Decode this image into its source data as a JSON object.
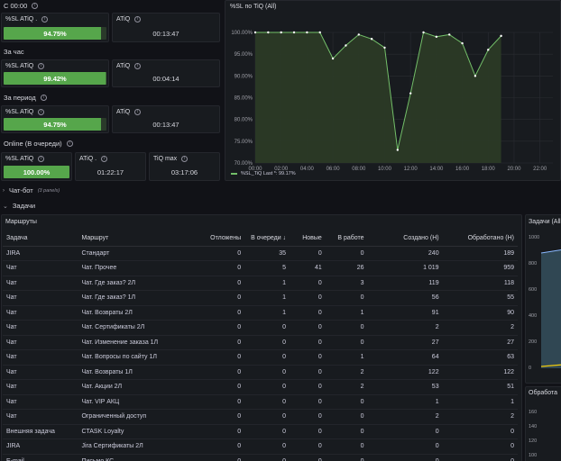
{
  "row1": {
    "title": "С 00:00"
  },
  "row2": {
    "title": "За час"
  },
  "row3": {
    "title": "За период"
  },
  "row4": {
    "title": "Online (В очереди)"
  },
  "stats": {
    "sl1": {
      "title": "%SL ATiQ .",
      "value": "94.75%",
      "fill": 0.9475
    },
    "atiq1": {
      "title": "ATiQ",
      "value": "00:13:47"
    },
    "sl2": {
      "title": "%SL ATiQ",
      "value": "99.42%",
      "fill": 0.9942
    },
    "atiq2": {
      "title": "ATiQ",
      "value": "00:04:14"
    },
    "sl3": {
      "title": "%SL ATiQ",
      "value": "94.75%",
      "fill": 0.9475
    },
    "atiq3": {
      "title": "ATiQ",
      "value": "00:13:47"
    },
    "sl4": {
      "title": "%SL ATiQ",
      "value": "100.00%",
      "fill": 1.0
    },
    "atiq4": {
      "title": "ATiQ .",
      "value": "01:22:17"
    },
    "tiqmax": {
      "title": "TiQ max",
      "value": "03:17:06"
    }
  },
  "collapsed_row": {
    "title": "Чат-бот",
    "count": "(3 panels)"
  },
  "tasks_row": {
    "title": "Задачи"
  },
  "routes_panel": {
    "title": "Маршруты"
  },
  "table": {
    "headers": [
      "Задача",
      "Маршрут",
      "Отложены",
      "В очереди ↓",
      "Новые",
      "В работе",
      "Создано (Н)",
      "Обработано (Н)"
    ],
    "rows": [
      [
        "JIRA",
        "Стандарт",
        "0",
        "35",
        "0",
        "0",
        "240",
        "189"
      ],
      [
        "Чат",
        "Чат. Прочее",
        "0",
        "5",
        "41",
        "26",
        "1 019",
        "959"
      ],
      [
        "Чат",
        "Чат. Где заказ? 2Л",
        "0",
        "1",
        "0",
        "3",
        "119",
        "118"
      ],
      [
        "Чат",
        "Чат. Где заказ? 1Л",
        "0",
        "1",
        "0",
        "0",
        "56",
        "55"
      ],
      [
        "Чат",
        "Чат. Возвраты 2Л",
        "0",
        "1",
        "0",
        "1",
        "91",
        "90"
      ],
      [
        "Чат",
        "Чат. Сертификаты 2Л",
        "0",
        "0",
        "0",
        "0",
        "2",
        "2"
      ],
      [
        "Чат",
        "Чат. Изменение заказа 1Л",
        "0",
        "0",
        "0",
        "0",
        "27",
        "27"
      ],
      [
        "Чат",
        "Чат. Вопросы по сайту 1Л",
        "0",
        "0",
        "0",
        "1",
        "64",
        "63"
      ],
      [
        "Чат",
        "Чат. Возвраты 1Л",
        "0",
        "0",
        "0",
        "2",
        "122",
        "122"
      ],
      [
        "Чат",
        "Чат. Акции 2Л",
        "0",
        "0",
        "0",
        "2",
        "53",
        "51"
      ],
      [
        "Чат",
        "Чат. VIP АКЦ",
        "0",
        "0",
        "0",
        "0",
        "1",
        "1"
      ],
      [
        "Чат",
        "Ограниченный доступ",
        "0",
        "0",
        "0",
        "0",
        "2",
        "2"
      ],
      [
        "Внешняя задача",
        "CTASK Loyalty",
        "0",
        "0",
        "0",
        "0",
        "0",
        "0"
      ],
      [
        "JIRA",
        "Jira Сертификаты 2Л",
        "0",
        "0",
        "0",
        "0",
        "0",
        "0"
      ],
      [
        "E-mail",
        "Письмо КС",
        "0",
        "0",
        "0",
        "0",
        "0",
        "0"
      ]
    ]
  },
  "side_panel1": {
    "title": "Задачи (All",
    "ticks": [
      "1000",
      "800",
      "600",
      "400",
      "200",
      "0"
    ]
  },
  "side_panel2": {
    "title": "Обработа",
    "ticks": [
      "160",
      "140",
      "120",
      "100"
    ]
  },
  "colors": {
    "green": "#56a64b",
    "line": "#73bf69",
    "bg": "#111217",
    "panel": "#181b1f"
  },
  "chart_data": {
    "type": "line",
    "title": "%SL по TiQ (All)",
    "ylim": [
      70,
      100
    ],
    "yticks": [
      "100.00%",
      "95.00%",
      "90.00%",
      "85.00%",
      "80.00%",
      "75.00%",
      "70.00%"
    ],
    "xticks": [
      "00:00",
      "02:00",
      "04:00",
      "06:00",
      "08:00",
      "10:00",
      "12:00",
      "14:00",
      "16:00",
      "18:00",
      "20:00",
      "22:00"
    ],
    "xlim": [
      0,
      23
    ],
    "series": [
      {
        "name": "%SL_TiQ",
        "legend": "%SL_TiQ  Last *: 99.17%",
        "x": [
          0,
          1,
          2,
          3,
          4,
          5,
          6,
          7,
          8,
          9,
          10,
          11,
          12,
          13,
          14,
          15,
          16,
          17,
          18,
          19
        ],
        "values": [
          100,
          100,
          100,
          100,
          100,
          100,
          94,
          97,
          99.5,
          98.5,
          96.5,
          73,
          86,
          100,
          99,
          99.5,
          97.5,
          90,
          96,
          99.2
        ]
      }
    ]
  }
}
